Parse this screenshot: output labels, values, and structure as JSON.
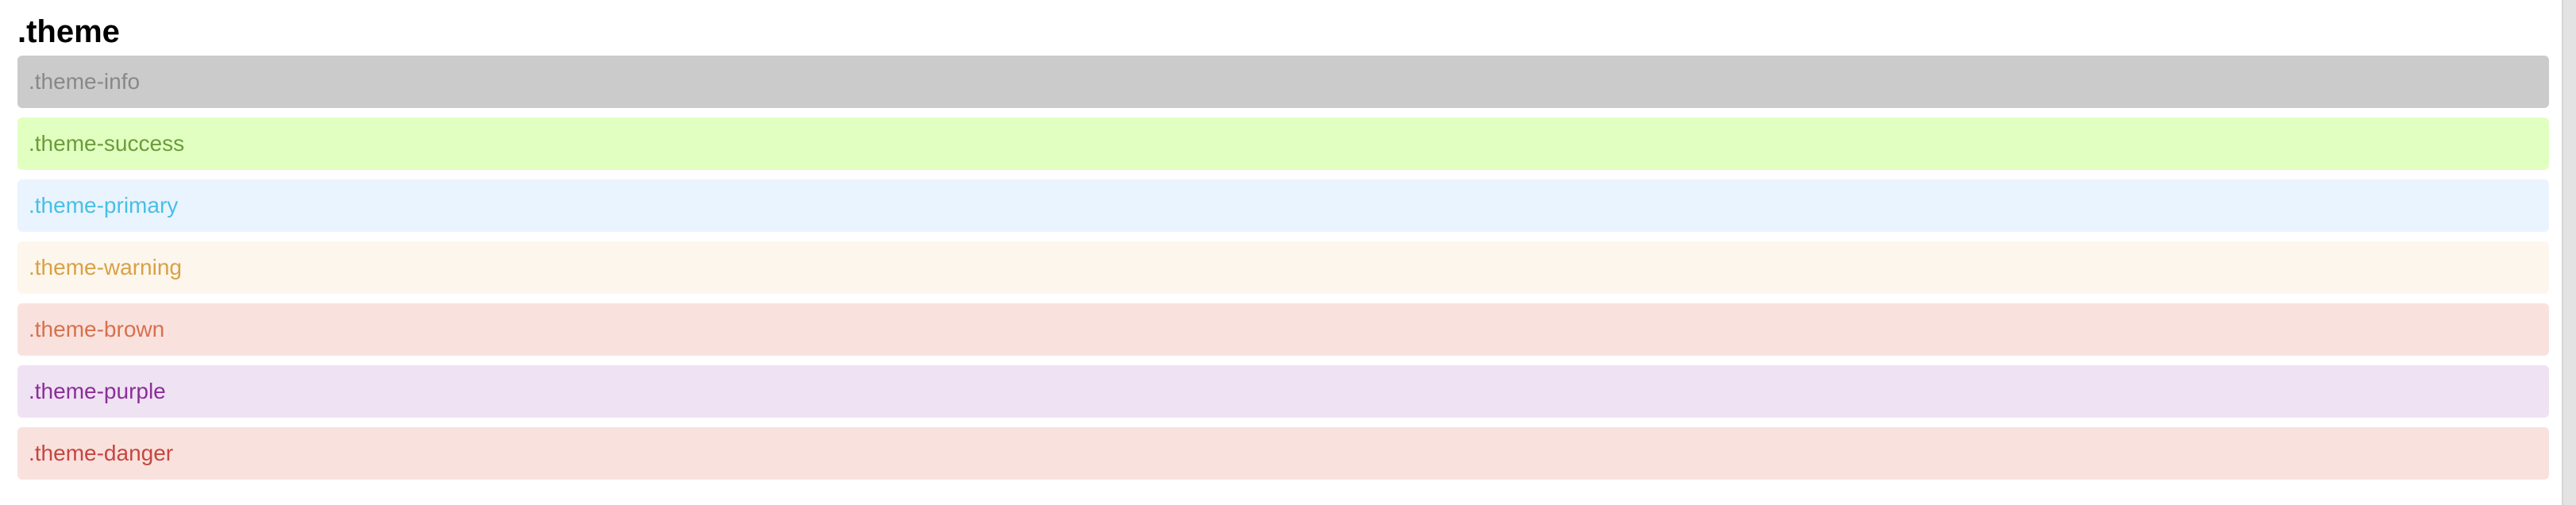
{
  "page": {
    "title": ".theme"
  },
  "themes": [
    {
      "label": ".theme-info",
      "background": "#cbcbcb",
      "text_color": "#888888"
    },
    {
      "label": ".theme-success",
      "background": "#e0ffc1",
      "text_color": "#6b9c39"
    },
    {
      "label": ".theme-primary",
      "background": "#eaf4fe",
      "text_color": "#48bfe3"
    },
    {
      "label": ".theme-warning",
      "background": "#fdf6ec",
      "text_color": "#d8a146"
    },
    {
      "label": ".theme-brown",
      "background": "#f9e2dd",
      "text_color": "#d8704d"
    },
    {
      "label": ".theme-purple",
      "background": "#efe2f3",
      "text_color": "#8a2e98"
    },
    {
      "label": ".theme-danger",
      "background": "#f9e1dd",
      "text_color": "#c6463f"
    }
  ]
}
